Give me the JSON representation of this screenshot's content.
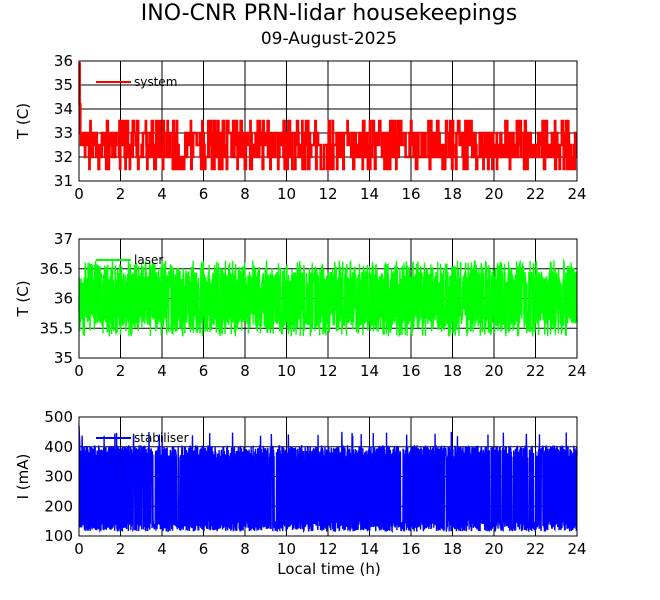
{
  "title": "INO-CNR PRN-lidar housekeepings",
  "subtitle": "09-August-2025",
  "xlabel": "Local time (h)",
  "chart_data": [
    {
      "type": "line",
      "ylabel": "T (C)",
      "xlim": [
        0,
        24
      ],
      "ylim": [
        31,
        36
      ],
      "xticks": [
        "0",
        "2",
        "4",
        "6",
        "8",
        "10",
        "12",
        "14",
        "16",
        "18",
        "20",
        "22",
        "24"
      ],
      "yticks": [
        "31",
        "32",
        "33",
        "34",
        "35",
        "36"
      ],
      "grid": true,
      "legend_position": "top-left",
      "series": [
        {
          "name": "system",
          "color": "#ff0000",
          "mode": "step",
          "center": 32.5,
          "amp": 0.5,
          "low": 31.5,
          "high": 33.5,
          "seed": 11,
          "start_x": [
            0,
            0.03,
            0.06,
            0.1
          ],
          "start_y": [
            35.9,
            34.2,
            33.0,
            32.5
          ]
        }
      ]
    },
    {
      "type": "line",
      "ylabel": "T (C)",
      "xlim": [
        0,
        24
      ],
      "ylim": [
        35,
        37
      ],
      "xticks": [
        "0",
        "2",
        "4",
        "6",
        "8",
        "10",
        "12",
        "14",
        "16",
        "18",
        "20",
        "22",
        "24"
      ],
      "yticks": [
        "35",
        "35.5",
        "36",
        "36.5",
        "37"
      ],
      "grid": true,
      "legend_position": "top-left",
      "series": [
        {
          "name": "laser",
          "color": "#00ff00",
          "mode": "noise",
          "center": 36.0,
          "amp": 0.8,
          "low": 35.2,
          "high": 36.8,
          "seed": 23
        }
      ]
    },
    {
      "type": "line",
      "ylabel": "I (mA)",
      "xlim": [
        0,
        24
      ],
      "ylim": [
        100,
        500
      ],
      "xticks": [
        "0",
        "2",
        "4",
        "6",
        "8",
        "10",
        "12",
        "14",
        "16",
        "18",
        "20",
        "22",
        "24"
      ],
      "yticks": [
        "100",
        "200",
        "300",
        "400",
        "500"
      ],
      "grid": true,
      "legend_position": "top-left",
      "series": [
        {
          "name": "stabiliser",
          "color": "#0000ff",
          "mode": "band",
          "center": 260,
          "amp": 145,
          "low": 105,
          "high": 450,
          "seed": 37,
          "start_x": [
            0,
            0.04
          ],
          "start_y": [
            470,
            400
          ]
        }
      ]
    }
  ]
}
